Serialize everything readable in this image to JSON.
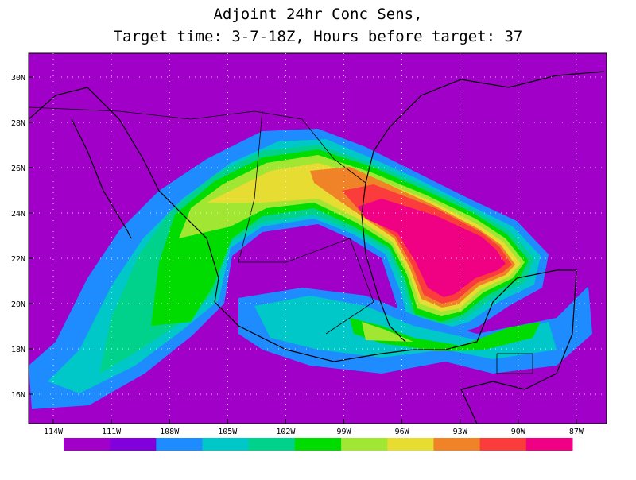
{
  "title": [
    "Adjoint 24hr Conc Sens,",
    "Target time: 3-7-18Z, Hours before target: 37"
  ],
  "lat_labels": [
    "30N",
    "28N",
    "26N",
    "24N",
    "22N",
    "20N",
    "18N",
    "16N"
  ],
  "lon_labels": [
    "114W",
    "111W",
    "108W",
    "105W",
    "102W",
    "99W",
    "96W",
    "93W",
    "90W",
    "87W"
  ],
  "colorbar": {
    "colors": [
      "#a000c8",
      "#8200dc",
      "#1e8cff",
      "#00c8c8",
      "#00d28c",
      "#00dc00",
      "#a0e632",
      "#e6dc32",
      "#f08228",
      "#fa3c3c",
      "#f00082"
    ]
  }
}
